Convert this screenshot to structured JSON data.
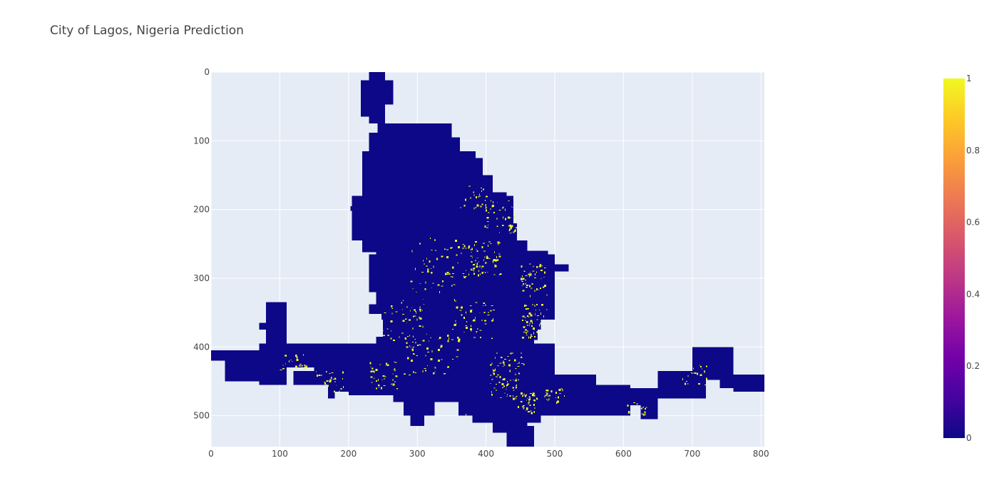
{
  "chart_data": {
    "type": "heatmap",
    "title": "City of Lagos, Nigeria Prediction",
    "xlabel": "",
    "ylabel": "",
    "xlim": [
      0,
      805
    ],
    "ylim": [
      545,
      0
    ],
    "y_reversed": true,
    "grid": true,
    "x_ticks": [
      "0",
      "100",
      "200",
      "300",
      "400",
      "500",
      "600",
      "700",
      "800"
    ],
    "y_ticks": [
      "0",
      "100",
      "200",
      "300",
      "400",
      "500"
    ],
    "value_range": [
      0,
      1
    ],
    "colorscale": [
      "#0d0887",
      "#46039f",
      "#7201a8",
      "#9c179e",
      "#bd3786",
      "#d8576b",
      "#ed7953",
      "#fb9f3a",
      "#fdca26",
      "#f0f921"
    ],
    "colorbar_ticks": [
      "0",
      "0.2",
      "0.4",
      "0.6",
      "0.8",
      "1"
    ],
    "background_color": "#e5ecf6",
    "class_0_color": "#0d0887",
    "class_1_color": "#f0f921"
  }
}
